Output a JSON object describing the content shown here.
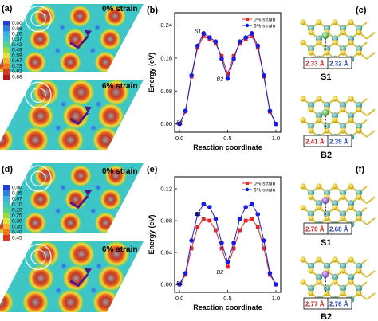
{
  "figure": {
    "panel_labels": [
      "(a)",
      "(b)",
      "(c)",
      "(d)",
      "(e)",
      "(f)"
    ],
    "strain_labels": {
      "a_top": "0% strain",
      "a_bottom": "6% strain",
      "d_top": "0% strain",
      "d_bottom": "6% strain"
    },
    "colorbar_a": [
      "0.00",
      "0.06",
      "0.20",
      "0.37",
      "0.42",
      "0.49",
      "0.59",
      "0.67",
      "0.75",
      "0.82",
      "0.88"
    ],
    "colorbar_d": [
      "0.00",
      "0.05",
      "0.07",
      "0.10",
      "0.20",
      "0.25",
      "0.30",
      "0.35",
      "0.40",
      "0.45"
    ],
    "struct_c": {
      "top": {
        "label": "S1",
        "d_red": "2.33 Å",
        "d_blue": "2.32 Å"
      },
      "bottom": {
        "label": "B2",
        "d_red": "2.41 Å",
        "d_blue": "2.39 Å"
      }
    },
    "struct_f": {
      "top": {
        "label": "S1",
        "d_red": "2.70 Å",
        "d_blue": "2.68 Å"
      },
      "bottom": {
        "label": "B2",
        "d_red": "2.77 Å",
        "d_blue": "2.76 Å"
      }
    },
    "colors": {
      "series_0": "#e32626",
      "series_6": "#1a1ae6"
    }
  },
  "chart_data": [
    {
      "type": "line",
      "panel": "(b)",
      "xlabel": "Reaction coordinate",
      "ylabel": "Energy (eV)",
      "xlim": [
        -0.05,
        1.05
      ],
      "ylim": [
        -0.02,
        0.27
      ],
      "xticks": [
        "0.0",
        "0.5",
        "1.0"
      ],
      "yticks": [
        "0.00",
        "0.08",
        "0.16",
        "0.24"
      ],
      "legend_position": "top-right",
      "annotations": [
        "S1",
        "B2",
        "B1"
      ],
      "series": [
        {
          "name": "0% strain",
          "marker": "square",
          "color": "#e32626",
          "x": [
            0.0,
            0.0625,
            0.125,
            0.1875,
            0.25,
            0.3125,
            0.375,
            0.4375,
            0.5,
            0.5625,
            0.625,
            0.6875,
            0.75,
            0.8125,
            0.875,
            0.9375,
            1.0
          ],
          "y": [
            0.0,
            0.03,
            0.115,
            0.185,
            0.213,
            0.205,
            0.195,
            0.165,
            0.122,
            0.165,
            0.195,
            0.205,
            0.213,
            0.185,
            0.115,
            0.03,
            0.0
          ]
        },
        {
          "name": "6% strain",
          "marker": "circle",
          "color": "#1a1ae6",
          "x": [
            0.0,
            0.0625,
            0.125,
            0.1875,
            0.25,
            0.3125,
            0.375,
            0.4375,
            0.5,
            0.5625,
            0.625,
            0.6875,
            0.75,
            0.8125,
            0.875,
            0.9375,
            1.0
          ],
          "y": [
            0.0,
            0.032,
            0.118,
            0.19,
            0.22,
            0.21,
            0.2,
            0.158,
            0.11,
            0.158,
            0.2,
            0.21,
            0.22,
            0.19,
            0.118,
            0.032,
            0.0
          ]
        }
      ]
    },
    {
      "type": "line",
      "panel": "(e)",
      "xlabel": "Reaction coordinate",
      "ylabel": "Energy (eV)",
      "xlim": [
        -0.05,
        1.05
      ],
      "ylim": [
        -0.01,
        0.135
      ],
      "xticks": [
        "0.0",
        "0.5",
        "1.0"
      ],
      "yticks": [
        "0.00",
        "0.04",
        "0.08",
        "0.12"
      ],
      "legend_position": "top-right",
      "annotations": [
        "S1",
        "B2",
        "B1"
      ],
      "series": [
        {
          "name": "0% strain",
          "marker": "square",
          "color": "#e32626",
          "x": [
            0.0,
            0.0625,
            0.125,
            0.1875,
            0.25,
            0.3125,
            0.375,
            0.4375,
            0.5,
            0.5625,
            0.625,
            0.6875,
            0.75,
            0.8125,
            0.875,
            0.9375,
            1.0
          ],
          "y": [
            0.0,
            0.012,
            0.045,
            0.072,
            0.082,
            0.08,
            0.068,
            0.045,
            0.022,
            0.045,
            0.068,
            0.08,
            0.082,
            0.072,
            0.045,
            0.012,
            0.0
          ]
        },
        {
          "name": "6% strain",
          "marker": "circle",
          "color": "#1a1ae6",
          "x": [
            0.0,
            0.0625,
            0.125,
            0.1875,
            0.25,
            0.3125,
            0.375,
            0.4375,
            0.5,
            0.5625,
            0.625,
            0.6875,
            0.75,
            0.8125,
            0.875,
            0.9375,
            1.0
          ],
          "y": [
            0.0,
            0.014,
            0.055,
            0.088,
            0.101,
            0.097,
            0.082,
            0.052,
            0.028,
            0.052,
            0.082,
            0.097,
            0.101,
            0.088,
            0.055,
            0.014,
            0.0
          ]
        }
      ]
    }
  ]
}
